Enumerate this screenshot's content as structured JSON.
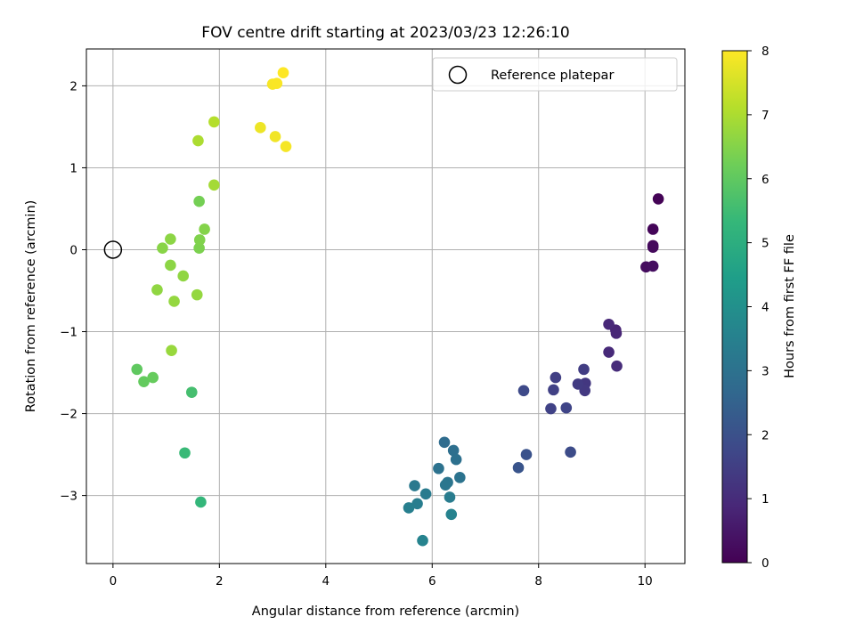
{
  "chart_data": {
    "type": "scatter",
    "title": "FOV centre drift starting at 2023/03/23 12:26:10",
    "xlabel": "Angular distance from reference (arcmin)",
    "ylabel": "Rotation from reference (arcmin)",
    "xlim": [
      -0.5,
      10.75
    ],
    "ylim": [
      -3.83,
      2.45
    ],
    "xticks": [
      0,
      2,
      4,
      6,
      8,
      10
    ],
    "yticks": [
      -3,
      -2,
      -1,
      0,
      1,
      2
    ],
    "grid": true,
    "legend": {
      "position": "top-right",
      "entries": [
        "Reference platepar"
      ]
    },
    "reference_point": {
      "x": 0,
      "y": 0
    },
    "colorbar": {
      "label": "Hours from first FF file",
      "range": [
        0,
        8
      ],
      "ticks": [
        0,
        1,
        2,
        3,
        4,
        5,
        6,
        7,
        8
      ],
      "colormap": [
        "#440154",
        "#482878",
        "#3e4989",
        "#31688e",
        "#26828e",
        "#1f9e89",
        "#35b779",
        "#6ece58",
        "#b5de2b",
        "#fde725"
      ]
    },
    "points": [
      {
        "x": 10.25,
        "y": 0.62,
        "h": 0.05
      },
      {
        "x": 10.15,
        "y": 0.25,
        "h": 0.1
      },
      {
        "x": 10.15,
        "y": 0.05,
        "h": 0.15
      },
      {
        "x": 10.15,
        "y": 0.03,
        "h": 0.2
      },
      {
        "x": 10.02,
        "y": -0.21,
        "h": 0.25
      },
      {
        "x": 10.15,
        "y": -0.2,
        "h": 0.3
      },
      {
        "x": 9.45,
        "y": -0.98,
        "h": 0.8
      },
      {
        "x": 9.46,
        "y": -1.02,
        "h": 0.85
      },
      {
        "x": 9.32,
        "y": -0.91,
        "h": 0.9
      },
      {
        "x": 9.32,
        "y": -1.25,
        "h": 0.95
      },
      {
        "x": 9.47,
        "y": -1.42,
        "h": 1.0
      },
      {
        "x": 8.88,
        "y": -1.63,
        "h": 1.3
      },
      {
        "x": 8.87,
        "y": -1.72,
        "h": 1.35
      },
      {
        "x": 8.74,
        "y": -1.64,
        "h": 1.4
      },
      {
        "x": 8.85,
        "y": -1.46,
        "h": 1.45
      },
      {
        "x": 8.32,
        "y": -1.56,
        "h": 1.5
      },
      {
        "x": 8.28,
        "y": -1.71,
        "h": 1.55
      },
      {
        "x": 8.23,
        "y": -1.94,
        "h": 1.6
      },
      {
        "x": 8.52,
        "y": -1.93,
        "h": 1.65
      },
      {
        "x": 7.72,
        "y": -1.72,
        "h": 1.8
      },
      {
        "x": 8.6,
        "y": -2.47,
        "h": 1.85
      },
      {
        "x": 7.77,
        "y": -2.5,
        "h": 2.05
      },
      {
        "x": 7.62,
        "y": -2.66,
        "h": 2.1
      },
      {
        "x": 6.23,
        "y": -2.35,
        "h": 2.8
      },
      {
        "x": 6.4,
        "y": -2.45,
        "h": 2.9
      },
      {
        "x": 6.45,
        "y": -2.56,
        "h": 2.95
      },
      {
        "x": 6.12,
        "y": -2.67,
        "h": 3.0
      },
      {
        "x": 6.52,
        "y": -2.78,
        "h": 3.05
      },
      {
        "x": 6.29,
        "y": -2.84,
        "h": 3.1
      },
      {
        "x": 6.25,
        "y": -2.87,
        "h": 3.15
      },
      {
        "x": 5.67,
        "y": -2.88,
        "h": 3.25
      },
      {
        "x": 5.88,
        "y": -2.98,
        "h": 3.3
      },
      {
        "x": 6.33,
        "y": -3.02,
        "h": 3.35
      },
      {
        "x": 5.72,
        "y": -3.1,
        "h": 3.4
      },
      {
        "x": 5.56,
        "y": -3.15,
        "h": 3.45
      },
      {
        "x": 6.36,
        "y": -3.23,
        "h": 3.55
      },
      {
        "x": 5.82,
        "y": -3.55,
        "h": 3.6
      },
      {
        "x": 1.65,
        "y": -3.08,
        "h": 5.3
      },
      {
        "x": 1.35,
        "y": -2.48,
        "h": 5.4
      },
      {
        "x": 1.48,
        "y": -1.74,
        "h": 5.6
      },
      {
        "x": 0.45,
        "y": -1.46,
        "h": 6.0
      },
      {
        "x": 0.58,
        "y": -1.61,
        "h": 6.05
      },
      {
        "x": 0.75,
        "y": -1.56,
        "h": 6.1
      },
      {
        "x": 1.62,
        "y": 0.59,
        "h": 6.3
      },
      {
        "x": 1.62,
        "y": 0.02,
        "h": 6.4
      },
      {
        "x": 1.63,
        "y": 0.12,
        "h": 6.45
      },
      {
        "x": 1.72,
        "y": 0.25,
        "h": 6.5
      },
      {
        "x": 0.93,
        "y": 0.02,
        "h": 6.55
      },
      {
        "x": 1.08,
        "y": 0.13,
        "h": 6.6
      },
      {
        "x": 1.08,
        "y": -0.19,
        "h": 6.6
      },
      {
        "x": 0.83,
        "y": -0.49,
        "h": 6.65
      },
      {
        "x": 1.32,
        "y": -0.32,
        "h": 6.65
      },
      {
        "x": 1.15,
        "y": -0.63,
        "h": 6.7
      },
      {
        "x": 1.58,
        "y": -0.55,
        "h": 6.7
      },
      {
        "x": 1.1,
        "y": -1.23,
        "h": 6.75
      },
      {
        "x": 1.9,
        "y": 0.79,
        "h": 6.9
      },
      {
        "x": 1.6,
        "y": 1.33,
        "h": 7.0
      },
      {
        "x": 1.9,
        "y": 1.56,
        "h": 7.1
      },
      {
        "x": 2.77,
        "y": 1.49,
        "h": 7.8
      },
      {
        "x": 3.05,
        "y": 1.38,
        "h": 7.85
      },
      {
        "x": 3.25,
        "y": 1.26,
        "h": 7.9
      },
      {
        "x": 3.0,
        "y": 2.02,
        "h": 7.92
      },
      {
        "x": 3.08,
        "y": 2.03,
        "h": 7.95
      },
      {
        "x": 3.2,
        "y": 2.16,
        "h": 8.0
      }
    ]
  }
}
